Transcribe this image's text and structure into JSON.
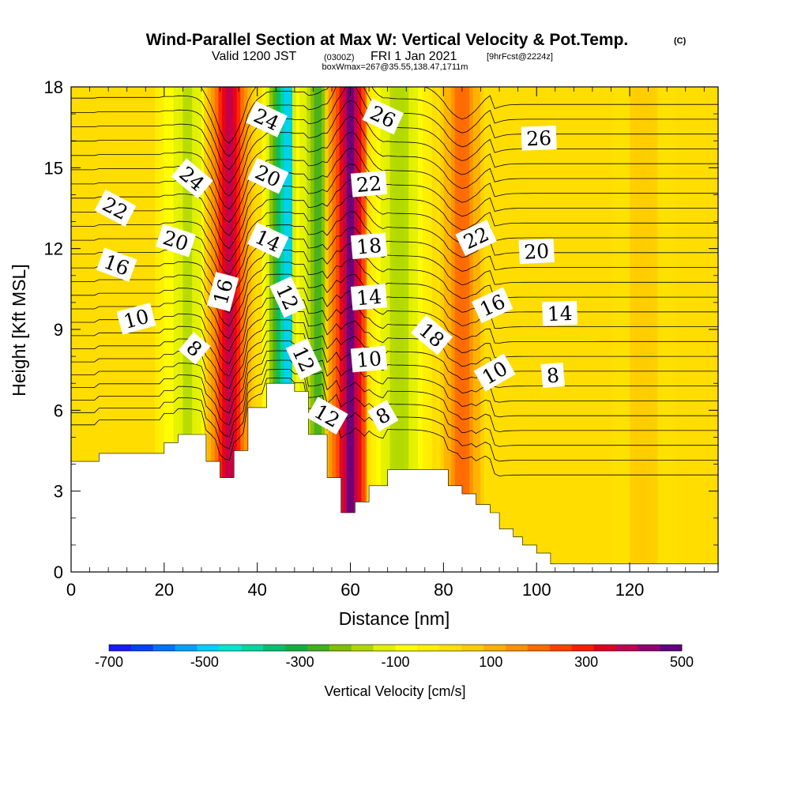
{
  "title": {
    "main": "Wind-Parallel Section at Max W: Vertical Velocity & Pot.Temp.",
    "copyright": "(C)",
    "valid_prefix": "Valid 1200 JST",
    "valid_utc": "(0300Z)",
    "valid_date": "FRI 1 Jan 2021",
    "forecast": "[9hrFcst@2224z]",
    "box_info": "boxWmax=267@35.55,138.47,1711m"
  },
  "chart_data": {
    "type": "heatmap",
    "xlabel": "Distance [nm]",
    "ylabel": "Height [Kft MSL]",
    "xlim": [
      0,
      139
    ],
    "ylim": [
      0,
      18
    ],
    "x_ticks": [
      0,
      20,
      40,
      60,
      80,
      100,
      120
    ],
    "y_ticks": [
      0,
      3,
      6,
      9,
      12,
      15,
      18
    ],
    "colorbar": {
      "label": "Vertical Velocity [cm/s]",
      "range": [
        -700,
        500
      ],
      "tick_labels": [
        "-700",
        "-500",
        "-300",
        "-100",
        "100",
        "300",
        "500"
      ],
      "colors": [
        "#1a1aff",
        "#0040ff",
        "#0070ff",
        "#00a0ff",
        "#00d0ff",
        "#00e8d0",
        "#00d8a0",
        "#00c070",
        "#10b040",
        "#40b020",
        "#80c000",
        "#b0d800",
        "#e0f000",
        "#ffff00",
        "#fff000",
        "#ffe000",
        "#ffcc00",
        "#ffb000",
        "#ff9000",
        "#ff6a00",
        "#ff4000",
        "#ff1a00",
        "#e00020",
        "#c00050",
        "#900070",
        "#600080"
      ]
    },
    "velocity_bands": [
      {
        "center_nm": 25.0,
        "value": -150
      },
      {
        "center_nm": 34.0,
        "value": 380
      },
      {
        "center_nm": 46.5,
        "value": -480
      },
      {
        "center_nm": 53.0,
        "value": -250
      },
      {
        "center_nm": 60.0,
        "value": 460
      },
      {
        "center_nm": 70.5,
        "value": -180
      },
      {
        "center_nm": 84.0,
        "value": 220
      },
      {
        "center_nm": 123.0,
        "value": 60
      }
    ],
    "terrain_kft": [
      [
        0,
        4.1
      ],
      [
        6,
        4.1
      ],
      [
        6,
        4.4
      ],
      [
        20,
        4.4
      ],
      [
        20,
        4.8
      ],
      [
        23,
        4.8
      ],
      [
        23,
        5.1
      ],
      [
        29,
        5.1
      ],
      [
        29,
        4.1
      ],
      [
        32,
        4.1
      ],
      [
        32,
        3.5
      ],
      [
        35,
        3.5
      ],
      [
        35,
        4.5
      ],
      [
        38,
        4.5
      ],
      [
        38,
        6.1
      ],
      [
        42,
        6.1
      ],
      [
        42,
        7.0
      ],
      [
        48,
        7.0
      ],
      [
        48,
        6.7
      ],
      [
        51,
        6.7
      ],
      [
        51,
        5.1
      ],
      [
        55,
        5.1
      ],
      [
        55,
        3.5
      ],
      [
        58,
        3.5
      ],
      [
        58,
        2.2
      ],
      [
        61,
        2.2
      ],
      [
        61,
        2.6
      ],
      [
        64,
        2.6
      ],
      [
        64,
        3.2
      ],
      [
        68,
        3.2
      ],
      [
        68,
        3.8
      ],
      [
        81,
        3.8
      ],
      [
        81,
        3.2
      ],
      [
        84,
        3.2
      ],
      [
        84,
        2.9
      ],
      [
        87,
        2.9
      ],
      [
        87,
        2.5
      ],
      [
        90,
        2.5
      ],
      [
        90,
        2.2
      ],
      [
        92,
        2.2
      ],
      [
        92,
        1.6
      ],
      [
        95,
        1.6
      ],
      [
        95,
        1.3
      ],
      [
        97,
        1.3
      ],
      [
        97,
        1.0
      ],
      [
        100,
        1.0
      ],
      [
        100,
        0.7
      ],
      [
        103,
        0.7
      ],
      [
        103,
        0.3
      ],
      [
        139,
        0.3
      ],
      [
        139,
        0
      ]
    ],
    "theta_labels": [
      {
        "text": "22",
        "x": 9.5,
        "y": 13.5,
        "angle": 28
      },
      {
        "text": "24",
        "x": 26.0,
        "y": 14.6,
        "angle": 40
      },
      {
        "text": "20",
        "x": 22.5,
        "y": 12.3,
        "angle": 18
      },
      {
        "text": "16",
        "x": 9.8,
        "y": 11.4,
        "angle": 20
      },
      {
        "text": "10",
        "x": 14.0,
        "y": 9.4,
        "angle": -15
      },
      {
        "text": "8",
        "x": 26.5,
        "y": 8.3,
        "angle": 40
      },
      {
        "text": "16",
        "x": 32.6,
        "y": 10.4,
        "angle": -75
      },
      {
        "text": "24",
        "x": 42.0,
        "y": 16.8,
        "angle": 25
      },
      {
        "text": "20",
        "x": 42.3,
        "y": 14.7,
        "angle": 25
      },
      {
        "text": "14",
        "x": 42.3,
        "y": 12.3,
        "angle": 25
      },
      {
        "text": "12",
        "x": 46.5,
        "y": 10.2,
        "angle": 65
      },
      {
        "text": "12",
        "x": 50.0,
        "y": 7.9,
        "angle": 65
      },
      {
        "text": "12",
        "x": 55.0,
        "y": 5.8,
        "angle": 30
      },
      {
        "text": "26",
        "x": 67.0,
        "y": 16.9,
        "angle": 25
      },
      {
        "text": "22",
        "x": 64.0,
        "y": 14.4,
        "angle": -5
      },
      {
        "text": "18",
        "x": 64.0,
        "y": 12.1,
        "angle": -5
      },
      {
        "text": "14",
        "x": 64.0,
        "y": 10.2,
        "angle": -5
      },
      {
        "text": "10",
        "x": 64.0,
        "y": 7.9,
        "angle": -5
      },
      {
        "text": "8",
        "x": 67.0,
        "y": 5.8,
        "angle": -30
      },
      {
        "text": "18",
        "x": 77.5,
        "y": 8.8,
        "angle": 40
      },
      {
        "text": "22",
        "x": 87.0,
        "y": 12.4,
        "angle": -25
      },
      {
        "text": "16",
        "x": 90.5,
        "y": 9.9,
        "angle": -25
      },
      {
        "text": "10",
        "x": 91.0,
        "y": 7.4,
        "angle": -30
      },
      {
        "text": "26",
        "x": 100.5,
        "y": 16.1,
        "angle": -2
      },
      {
        "text": "20",
        "x": 100.0,
        "y": 11.9,
        "angle": -3
      },
      {
        "text": "14",
        "x": 105.0,
        "y": 9.6,
        "angle": -2
      },
      {
        "text": "8",
        "x": 103.5,
        "y": 7.3,
        "angle": -5
      }
    ]
  }
}
